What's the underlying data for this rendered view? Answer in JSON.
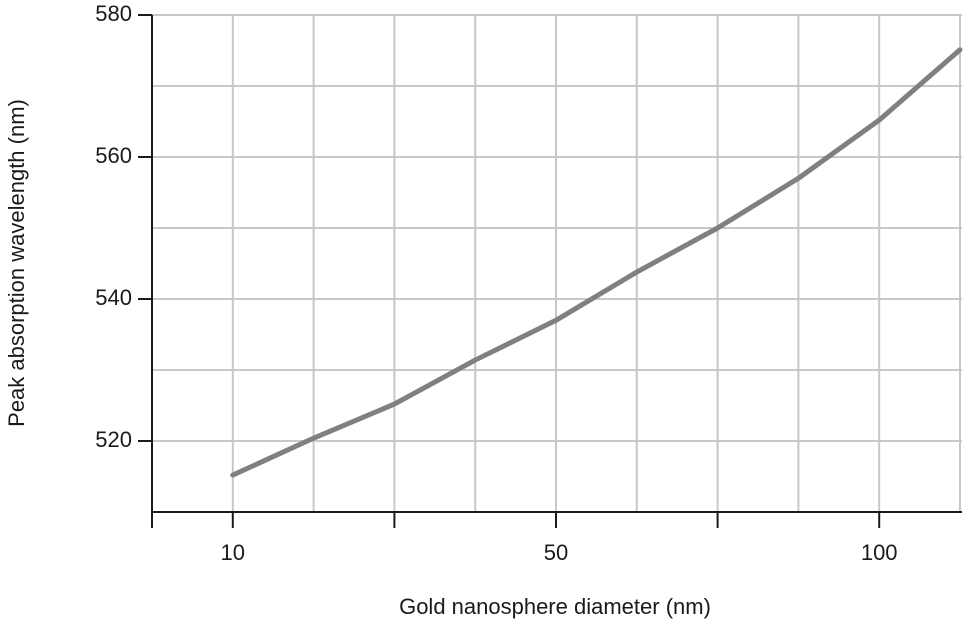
{
  "chart_data": {
    "type": "line",
    "x_label": "Gold nanosphere diameter (nm)",
    "y_label": "Peak absorption wavelength (nm)",
    "categories": [
      "10",
      null,
      null,
      null,
      "50",
      null,
      null,
      null,
      "100",
      null
    ],
    "series": [
      {
        "color": "#808080",
        "values": [
          515.2,
          520.4,
          525.2,
          531.4,
          537,
          543.8,
          550,
          557,
          565.2,
          575.1
        ]
      }
    ],
    "ylim": [
      510,
      580
    ],
    "yticks": [
      520,
      540,
      560,
      580
    ],
    "ygrid": [
      520,
      530,
      540,
      550,
      560,
      570,
      580
    ],
    "grid": true
  }
}
